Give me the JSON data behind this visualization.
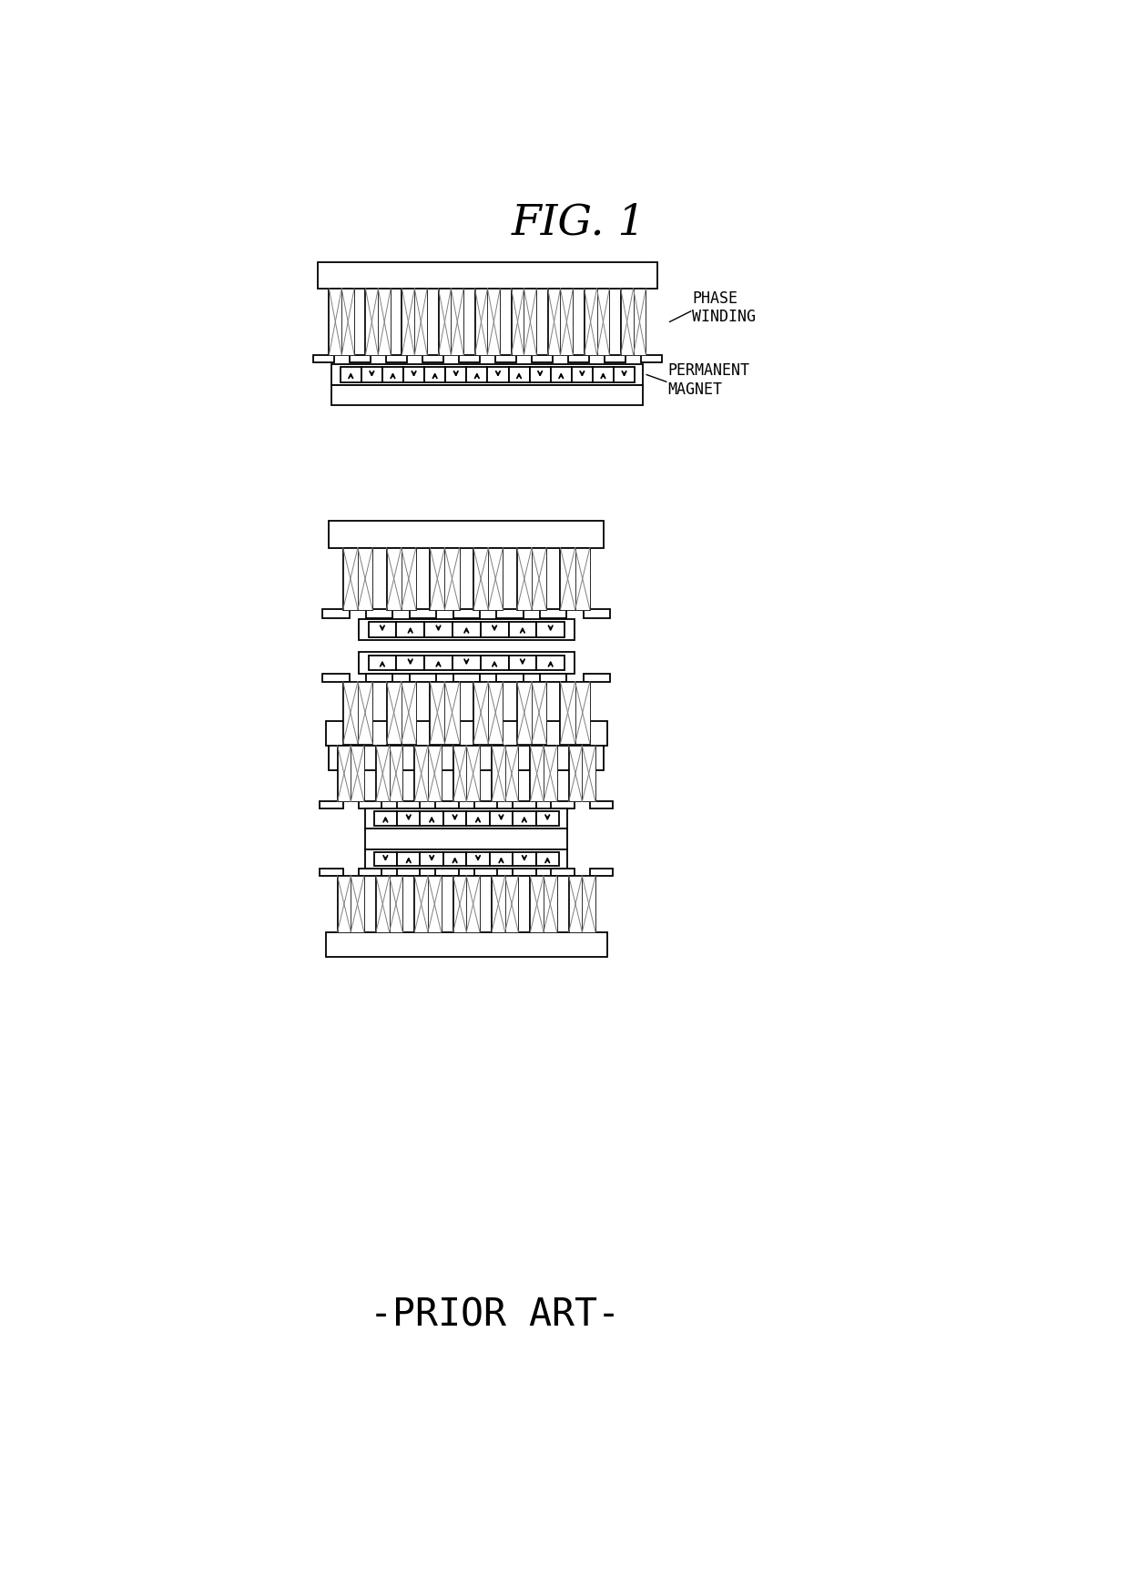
{
  "title": "FIG. 1",
  "prior_art": "-PRIOR ART-",
  "phase_winding_label": "PHASE\nWINDING",
  "permanent_magnet_label": "PERMANENT\nMAGNET",
  "bg_color": "#ffffff",
  "line_color": "#000000",
  "fig_width": 12.4,
  "fig_height": 17.42,
  "lw": 1.3,
  "thin_lw": 0.7
}
